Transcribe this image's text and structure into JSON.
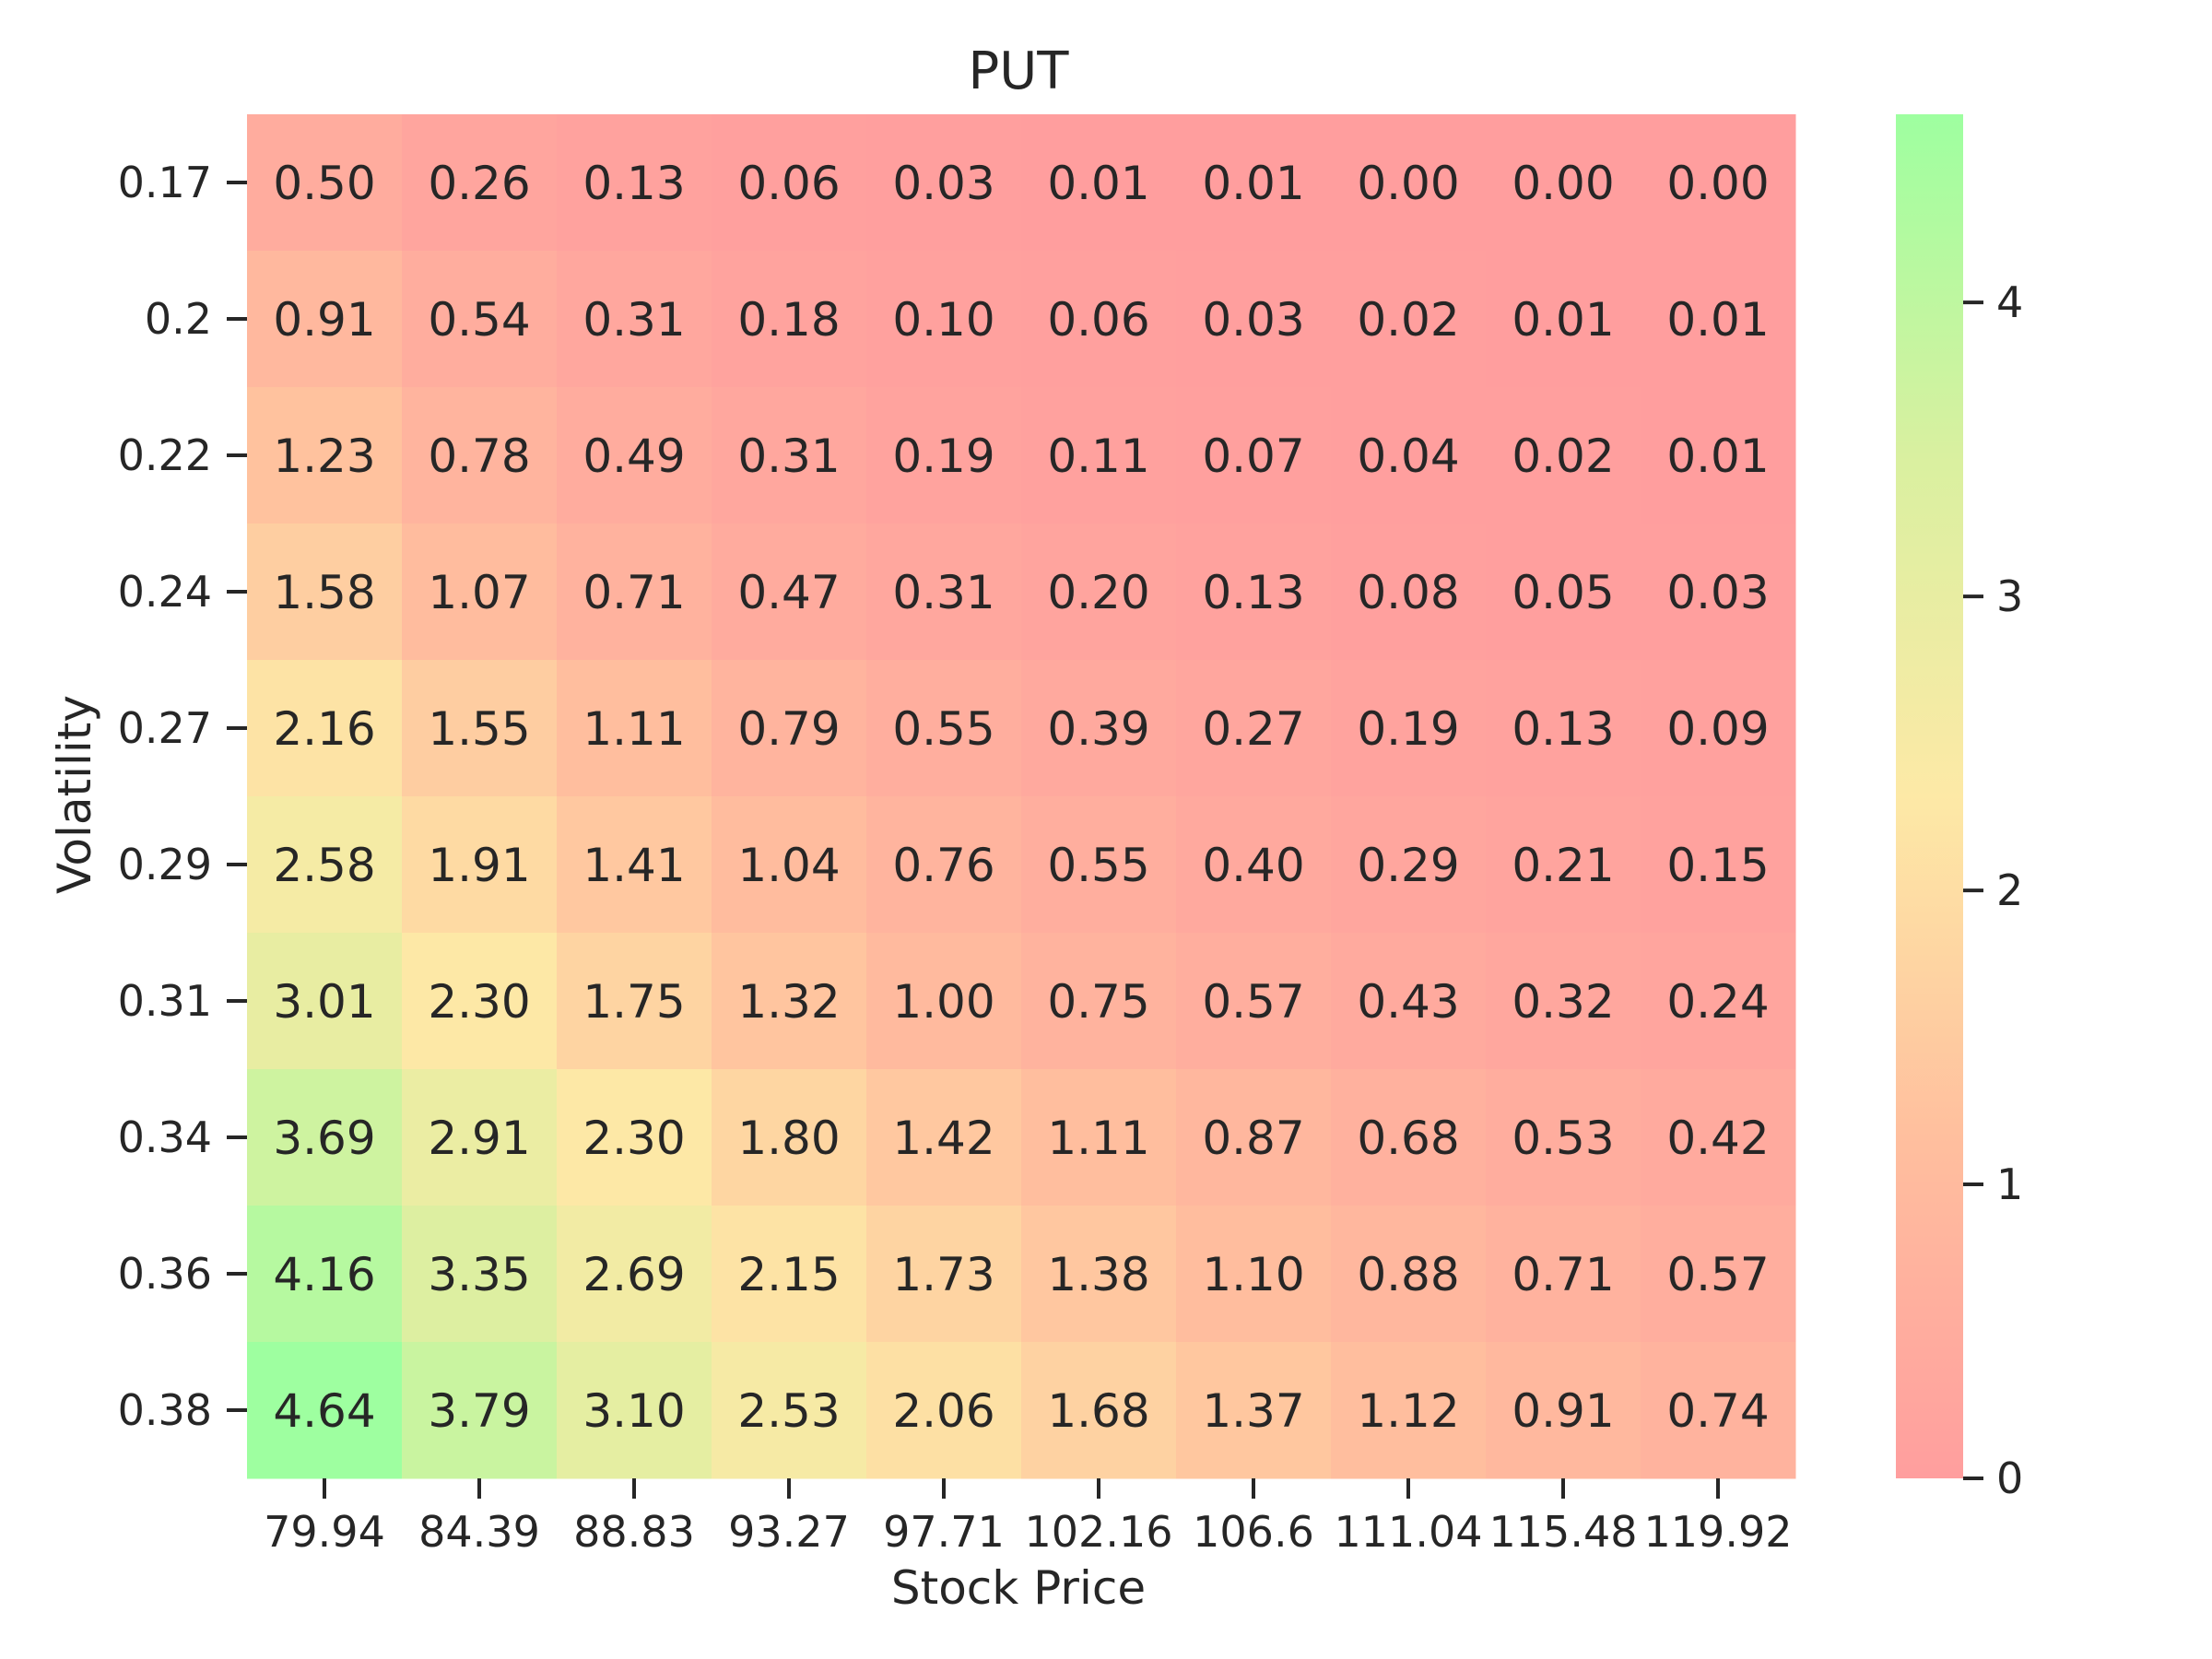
{
  "chart_data": {
    "type": "heatmap",
    "title": "PUT",
    "xlabel": "Stock Price",
    "ylabel": "Volatility",
    "x_categories": [
      "79.94",
      "84.39",
      "88.83",
      "93.27",
      "97.71",
      "102.16",
      "106.6",
      "111.04",
      "115.48",
      "119.92"
    ],
    "y_categories": [
      "0.17",
      "0.2",
      "0.22",
      "0.24",
      "0.27",
      "0.29",
      "0.31",
      "0.34",
      "0.36",
      "0.38"
    ],
    "values": [
      [
        0.5,
        0.26,
        0.13,
        0.06,
        0.03,
        0.01,
        0.01,
        0.0,
        0.0,
        0.0
      ],
      [
        0.91,
        0.54,
        0.31,
        0.18,
        0.1,
        0.06,
        0.03,
        0.02,
        0.01,
        0.01
      ],
      [
        1.23,
        0.78,
        0.49,
        0.31,
        0.19,
        0.11,
        0.07,
        0.04,
        0.02,
        0.01
      ],
      [
        1.58,
        1.07,
        0.71,
        0.47,
        0.31,
        0.2,
        0.13,
        0.08,
        0.05,
        0.03
      ],
      [
        2.16,
        1.55,
        1.11,
        0.79,
        0.55,
        0.39,
        0.27,
        0.19,
        0.13,
        0.09
      ],
      [
        2.58,
        1.91,
        1.41,
        1.04,
        0.76,
        0.55,
        0.4,
        0.29,
        0.21,
        0.15
      ],
      [
        3.01,
        2.3,
        1.75,
        1.32,
        1.0,
        0.75,
        0.57,
        0.43,
        0.32,
        0.24
      ],
      [
        3.69,
        2.91,
        2.3,
        1.8,
        1.42,
        1.11,
        0.87,
        0.68,
        0.53,
        0.42
      ],
      [
        4.16,
        3.35,
        2.69,
        2.15,
        1.73,
        1.38,
        1.1,
        0.88,
        0.71,
        0.57
      ],
      [
        4.64,
        3.79,
        3.1,
        2.53,
        2.06,
        1.68,
        1.37,
        1.12,
        0.91,
        0.74
      ]
    ],
    "value_format_decimals": 2,
    "colorbar": {
      "min": 0,
      "max": 4.64,
      "ticks": [
        "0",
        "1",
        "2",
        "3",
        "4"
      ],
      "colors": [
        "#ff9e9e",
        "#ffbf9e",
        "#fde9a6",
        "#d9f0a0",
        "#9effa0"
      ]
    },
    "grid": false,
    "colorbar_placement": "right"
  }
}
